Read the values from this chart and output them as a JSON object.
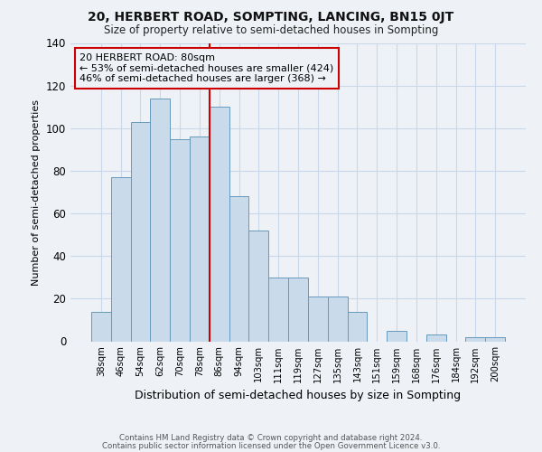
{
  "title": "20, HERBERT ROAD, SOMPTING, LANCING, BN15 0JT",
  "subtitle": "Size of property relative to semi-detached houses in Sompting",
  "xlabel": "Distribution of semi-detached houses by size in Sompting",
  "ylabel": "Number of semi-detached properties",
  "bar_labels": [
    "38sqm",
    "46sqm",
    "54sqm",
    "62sqm",
    "70sqm",
    "78sqm",
    "86sqm",
    "94sqm",
    "103sqm",
    "111sqm",
    "119sqm",
    "127sqm",
    "135sqm",
    "143sqm",
    "151sqm",
    "159sqm",
    "168sqm",
    "176sqm",
    "184sqm",
    "192sqm",
    "200sqm"
  ],
  "bar_values": [
    14,
    77,
    103,
    114,
    95,
    96,
    110,
    68,
    52,
    30,
    30,
    21,
    21,
    14,
    0,
    5,
    0,
    3,
    0,
    2,
    2
  ],
  "bar_color": "#c9daea",
  "bar_edge_color": "#6699bb",
  "property_label": "20 HERBERT ROAD: 80sqm",
  "annotation_line1": "← 53% of semi-detached houses are smaller (424)",
  "annotation_line2": "46% of semi-detached houses are larger (368) →",
  "vline_color": "#cc0000",
  "vline_x_index": 5.5,
  "annotation_box_edge_color": "#cc0000",
  "ylim": [
    0,
    140
  ],
  "yticks": [
    0,
    20,
    40,
    60,
    80,
    100,
    120,
    140
  ],
  "grid_color": "#c8d8e8",
  "bg_color": "#eef2f7",
  "footer1": "Contains HM Land Registry data © Crown copyright and database right 2024.",
  "footer2": "Contains public sector information licensed under the Open Government Licence v3.0."
}
